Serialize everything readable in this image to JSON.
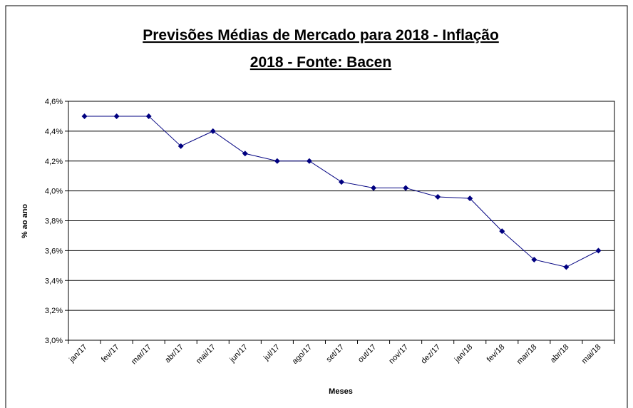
{
  "chart_data": {
    "type": "line",
    "title": [
      "Previsões Médias de Mercado para 2018 - Inflação",
      "2018 - Fonte: Bacen"
    ],
    "x_label": "Meses",
    "y_label": "% ao ano",
    "categories": [
      "jan/17",
      "fev/17",
      "mar/17",
      "abr/17",
      "mai/17",
      "jun/17",
      "jul/17",
      "ago/17",
      "set/17",
      "out/17",
      "nov/17",
      "dez/17",
      "jan/18",
      "fev/18",
      "mar/18",
      "abr/18",
      "mai/18"
    ],
    "values": [
      4.5,
      4.5,
      4.5,
      4.3,
      4.4,
      4.25,
      4.2,
      4.2,
      4.06,
      4.02,
      4.02,
      3.96,
      3.95,
      3.73,
      3.54,
      3.49,
      3.6
    ],
    "color": "#000080",
    "ylim": [
      3.0,
      4.6
    ],
    "yticks": [
      {
        "value": 3.0,
        "label": "3,0%"
      },
      {
        "value": 3.2,
        "label": "3,2%"
      },
      {
        "value": 3.4,
        "label": "3,4%"
      },
      {
        "value": 3.6,
        "label": "3,6%"
      },
      {
        "value": 3.8,
        "label": "3,8%"
      },
      {
        "value": 4.0,
        "label": "4,0%"
      },
      {
        "value": 4.2,
        "label": "4,2%"
      },
      {
        "value": 4.4,
        "label": "4,4%"
      },
      {
        "value": 4.6,
        "label": "4,6%"
      }
    ],
    "grid": true
  }
}
